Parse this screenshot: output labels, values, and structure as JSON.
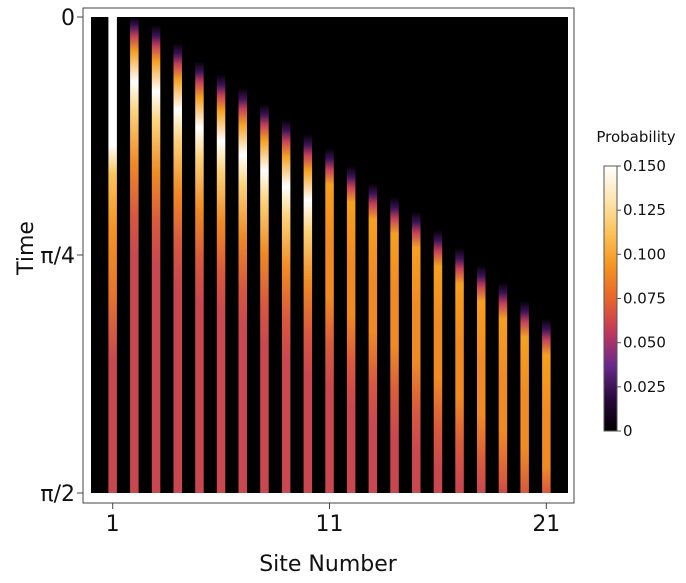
{
  "chart_data": {
    "type": "heatmap",
    "title": "",
    "xlabel": "Site Number",
    "ylabel": "Time",
    "x_ticks": [
      "1",
      "11",
      "21"
    ],
    "x_tick_values": [
      1,
      11,
      21
    ],
    "y_ticks": [
      "0",
      "π/4",
      "π/2"
    ],
    "y_tick_values": [
      0,
      0.7854,
      1.5708
    ],
    "xlim": [
      0,
      22
    ],
    "ylim": [
      0,
      1.5708
    ],
    "y_inverted": true,
    "sites": [
      1,
      2,
      3,
      4,
      5,
      6,
      7,
      8,
      9,
      10,
      11,
      12,
      13,
      14,
      15,
      16,
      17,
      18,
      19,
      20,
      21
    ],
    "arrival_time": [
      0,
      0.033,
      0.066,
      0.126,
      0.185,
      0.229,
      0.274,
      0.327,
      0.379,
      0.426,
      0.473,
      0.531,
      0.588,
      0.635,
      0.682,
      0.742,
      0.801,
      0.859,
      0.916,
      0.976,
      1.035
    ],
    "colorbar": {
      "title": "Probability",
      "ticks": [
        "0",
        "0.025",
        "0.050",
        "0.075",
        "0.100",
        "0.125",
        "0.150"
      ],
      "tick_values": [
        0,
        0.025,
        0.05,
        0.075,
        0.1,
        0.125,
        0.15
      ],
      "range": [
        0,
        0.15
      ],
      "colors": [
        "#000000",
        "#2a0a3f",
        "#6a2a8a",
        "#c2385c",
        "#e8652c",
        "#f59520",
        "#fcc35a",
        "#fde6b2",
        "#ffffff"
      ]
    },
    "colors": {
      "background": "#000000",
      "frame": "#444444"
    }
  }
}
